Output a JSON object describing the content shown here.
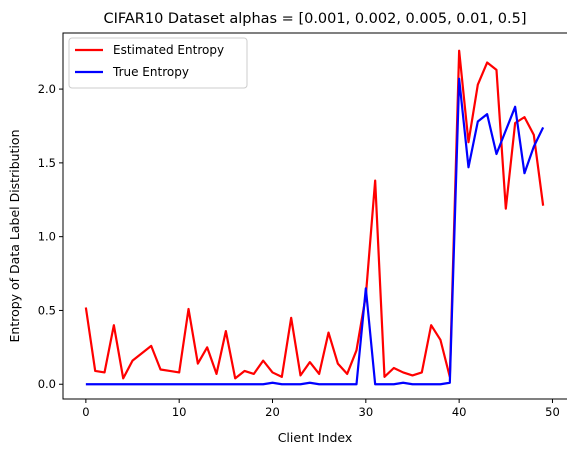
{
  "chart_data": {
    "type": "line",
    "title": "CIFAR10 Dataset alphas = [0.001, 0.002, 0.005, 0.01, 0.5]",
    "xlabel": "Client Index",
    "ylabel": "Entropy of Data Label Distribution",
    "xlim": [
      -2.45,
      51.45
    ],
    "ylim": [
      -0.1,
      2.38
    ],
    "xticks": [
      0,
      10,
      20,
      30,
      40,
      50
    ],
    "yticks": [
      0.0,
      0.5,
      1.0,
      1.5,
      2.0
    ],
    "ytick_labels": [
      "0.0",
      "0.5",
      "1.0",
      "1.5",
      "2.0"
    ],
    "legend_position": "top-left",
    "grid": false,
    "x": [
      0,
      1,
      2,
      3,
      4,
      5,
      6,
      7,
      8,
      9,
      10,
      11,
      12,
      13,
      14,
      15,
      16,
      17,
      18,
      19,
      20,
      21,
      22,
      23,
      24,
      25,
      26,
      27,
      28,
      29,
      30,
      31,
      32,
      33,
      34,
      35,
      36,
      37,
      38,
      39,
      40,
      41,
      42,
      43,
      44,
      45,
      46,
      47,
      48,
      49
    ],
    "series": [
      {
        "name": "Estimated Entropy",
        "color": "#ff0000",
        "values": [
          0.52,
          0.09,
          0.08,
          0.4,
          0.04,
          0.16,
          0.21,
          0.26,
          0.1,
          0.09,
          0.08,
          0.51,
          0.14,
          0.25,
          0.07,
          0.36,
          0.04,
          0.09,
          0.07,
          0.16,
          0.08,
          0.05,
          0.45,
          0.06,
          0.15,
          0.07,
          0.35,
          0.14,
          0.07,
          0.23,
          0.6,
          1.38,
          0.05,
          0.11,
          0.08,
          0.06,
          0.08,
          0.4,
          0.3,
          0.05,
          2.26,
          1.64,
          2.03,
          2.18,
          2.13,
          1.19,
          1.77,
          1.81,
          1.69,
          1.21
        ]
      },
      {
        "name": "True Entropy",
        "color": "#0000ff",
        "values": [
          0,
          0,
          0,
          0,
          0,
          0,
          0,
          0,
          0,
          0,
          0,
          0,
          0,
          0,
          0,
          0,
          0,
          0,
          0,
          0,
          0.01,
          0,
          0,
          0,
          0.01,
          0,
          0,
          0,
          0,
          0,
          0.65,
          0,
          0,
          0,
          0.01,
          0,
          0,
          0,
          0,
          0.01,
          2.07,
          1.47,
          1.78,
          1.83,
          1.56,
          1.72,
          1.88,
          1.43,
          1.61,
          1.74
        ]
      }
    ]
  }
}
